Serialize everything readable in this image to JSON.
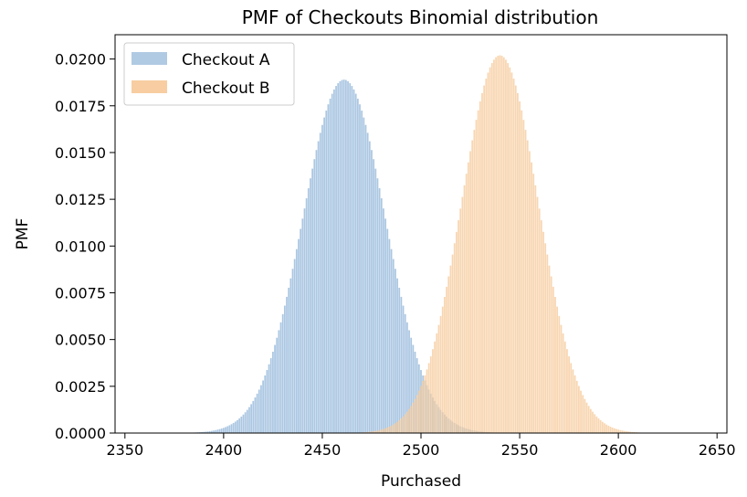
{
  "chart_data": {
    "type": "bar",
    "title": "PMF of Checkouts Binomial distribution",
    "xlabel": "Purchased",
    "ylabel": "PMF",
    "xlim": [
      2345,
      2655
    ],
    "ylim": [
      0,
      0.0213
    ],
    "xticks": [
      2350,
      2400,
      2450,
      2500,
      2550,
      2600,
      2650
    ],
    "yticks": [
      0.0,
      0.0025,
      0.005,
      0.0075,
      0.01,
      0.0125,
      0.015,
      0.0175,
      0.02
    ],
    "ytick_labels": [
      "0.0000",
      "0.0025",
      "0.0050",
      "0.0075",
      "0.0100",
      "0.0125",
      "0.0150",
      "0.0175",
      "0.0200"
    ],
    "grid": false,
    "legend_position": "top-left",
    "series": [
      {
        "name": "Checkout A",
        "color": "#a7c4e0",
        "distribution": "binomial",
        "mean": 2461,
        "std": 21.0,
        "peak_pmf": 0.0189,
        "x_range": [
          2385,
          2545
        ]
      },
      {
        "name": "Checkout B",
        "color": "#f6c897",
        "distribution": "binomial",
        "mean": 2540,
        "std": 19.6,
        "peak_pmf": 0.0202,
        "x_range": [
          2470,
          2612
        ]
      }
    ]
  }
}
